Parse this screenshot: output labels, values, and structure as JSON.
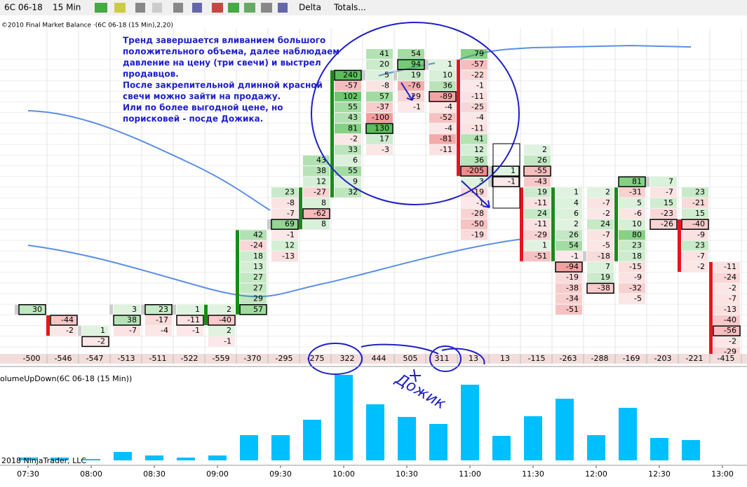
{
  "toolbar": {
    "instrument": "6C 06-18",
    "interval": "15 Min",
    "items": [
      "Delta",
      "Totals..."
    ]
  },
  "price_panel": {
    "label": "©2010 Final Market Balance ·(6C 06-18 (15 Min),2,20)"
  },
  "annotation": [
    "Тренд завершается вливанием большого",
    "положительного объема, далее наблюдаем",
    "давление на цену (три свечи) и выстрел",
    "продавцов.",
    "После закрепительной длинной красной",
    "свечи можно зайти на продажу.",
    "Или по более выгодной цене, но",
    "порисковей - посде Дожика."
  ],
  "handwriting": "Дожик",
  "footprint": {
    "bars": [
      {
        "top": 24,
        "body": [
          24,
          24
        ],
        "dir": "flat",
        "deltas": [
          30
        ]
      },
      {
        "top": 25,
        "body": [
          25,
          26
        ],
        "dir": "down",
        "deltas": [
          -44,
          -2
        ]
      },
      {
        "top": 26,
        "body": [
          26,
          26
        ],
        "dir": "flat",
        "deltas": [
          1,
          -2
        ]
      },
      {
        "top": 24,
        "body": [
          24,
          24
        ],
        "dir": "flat",
        "deltas": [
          3,
          38,
          -7
        ]
      },
      {
        "top": 24,
        "body": [
          24,
          24
        ],
        "dir": "flat",
        "deltas": [
          23,
          -17,
          -4
        ]
      },
      {
        "top": 24,
        "body": [
          24,
          24
        ],
        "dir": "flat",
        "deltas": [
          1,
          -11,
          -1
        ]
      },
      {
        "top": 24,
        "body": [
          24,
          25
        ],
        "dir": "up",
        "deltas": [
          2,
          -40,
          2,
          -1
        ]
      },
      {
        "top": 17,
        "body": [
          17,
          24
        ],
        "dir": "up",
        "deltas": [
          42,
          -24,
          18,
          13,
          27,
          27,
          29,
          57
        ]
      },
      {
        "top": 13,
        "body": [
          16,
          16
        ],
        "dir": "flat",
        "deltas": [
          23,
          -8,
          -7,
          69,
          -1,
          12,
          -13
        ]
      },
      {
        "top": 10,
        "body": [
          13,
          16
        ],
        "dir": "up",
        "deltas": [
          43,
          38,
          12,
          -27,
          8,
          -62,
          8
        ]
      },
      {
        "top": 2,
        "body": [
          2,
          13
        ],
        "dir": "up",
        "deltas": [
          240,
          -57,
          102,
          55,
          43,
          81,
          -2,
          33,
          6,
          55,
          9,
          32
        ]
      },
      {
        "top": 0,
        "body": [
          2,
          2
        ],
        "dir": "flat",
        "deltas": [
          41,
          20,
          5,
          -8,
          57,
          -37,
          -100,
          130,
          17,
          -3
        ]
      },
      {
        "top": 0,
        "body": [
          2,
          2
        ],
        "dir": "flat",
        "deltas": [
          54,
          94,
          19,
          -76,
          -29,
          -1
        ]
      },
      {
        "top": 1,
        "body": [
          1,
          1
        ],
        "dir": "flat",
        "deltas": [
          1,
          10,
          36,
          -89,
          -4,
          -52,
          -4,
          -81,
          -11
        ]
      },
      {
        "top": 0,
        "body": [
          1,
          11
        ],
        "dir": "down",
        "deltas": [
          79,
          -57,
          -22,
          -1,
          -11,
          -25,
          -4,
          -11,
          41,
          12,
          36,
          -205,
          3,
          -19,
          -1,
          -28,
          -50,
          -19
        ]
      },
      {
        "top": 11,
        "body": [
          11,
          12
        ],
        "dir": "flat",
        "deltas": [
          1,
          -1
        ]
      },
      {
        "top": 9,
        "body": [
          13,
          19
        ],
        "dir": "down",
        "deltas": [
          2,
          26,
          -55,
          -43,
          19,
          -11,
          24,
          -11,
          -29,
          1,
          -51
        ]
      },
      {
        "top": 13,
        "body": [
          13,
          19
        ],
        "dir": "up",
        "deltas": [
          1,
          4,
          6,
          2,
          26,
          54,
          -1,
          -94,
          -19,
          -38,
          -34,
          -51
        ]
      },
      {
        "top": 13,
        "body": [
          19,
          19
        ],
        "dir": "flat",
        "deltas": [
          2,
          -7,
          -2,
          24,
          -7,
          -5,
          -18,
          7,
          19,
          -38
        ]
      },
      {
        "top": 12,
        "body": [
          13,
          19
        ],
        "dir": "up",
        "deltas": [
          81,
          -31,
          5,
          -6,
          10,
          80,
          23,
          18,
          -15,
          -9,
          -32,
          -5
        ]
      },
      {
        "top": 12,
        "body": [
          12,
          12
        ],
        "dir": "flat",
        "deltas": [
          7,
          -7,
          15,
          -23,
          -26
        ]
      },
      {
        "top": 13,
        "body": [
          16,
          20
        ],
        "dir": "down",
        "deltas": [
          23,
          -21,
          15,
          -40,
          -9,
          23,
          -7,
          -2
        ]
      },
      {
        "top": 20,
        "body": [
          20,
          28
        ],
        "dir": "down",
        "deltas": [
          -11,
          -24,
          -2,
          -7,
          -13,
          -40,
          -56,
          -2,
          -29
        ]
      }
    ],
    "totals": [
      -500,
      -546,
      -547,
      -513,
      -511,
      -522,
      -559,
      -370,
      -295,
      -275,
      322,
      444,
      505,
      311,
      13,
      13,
      -115,
      -263,
      -288,
      -169,
      -203,
      -221,
      -415
    ]
  },
  "volume_panel": {
    "label": "olumeUpDown(6C 06-18 (15 Min))",
    "copyright": "2018 NinjaTrader, LLC",
    "color": "#00bfff",
    "values": [
      4,
      4,
      2,
      12,
      7,
      4,
      7,
      36,
      36,
      58,
      122,
      80,
      62,
      52,
      108,
      35,
      63,
      88,
      36,
      75,
      32,
      29,
      null
    ]
  },
  "time_axis": [
    "07:30",
    null,
    "08:00",
    null,
    "08:30",
    null,
    "09:00",
    null,
    "09:30",
    null,
    "10:00",
    null,
    "10:30",
    null,
    "11:00",
    null,
    "11:30",
    null,
    "12:00",
    null,
    "12:30",
    null,
    "13:00"
  ]
}
